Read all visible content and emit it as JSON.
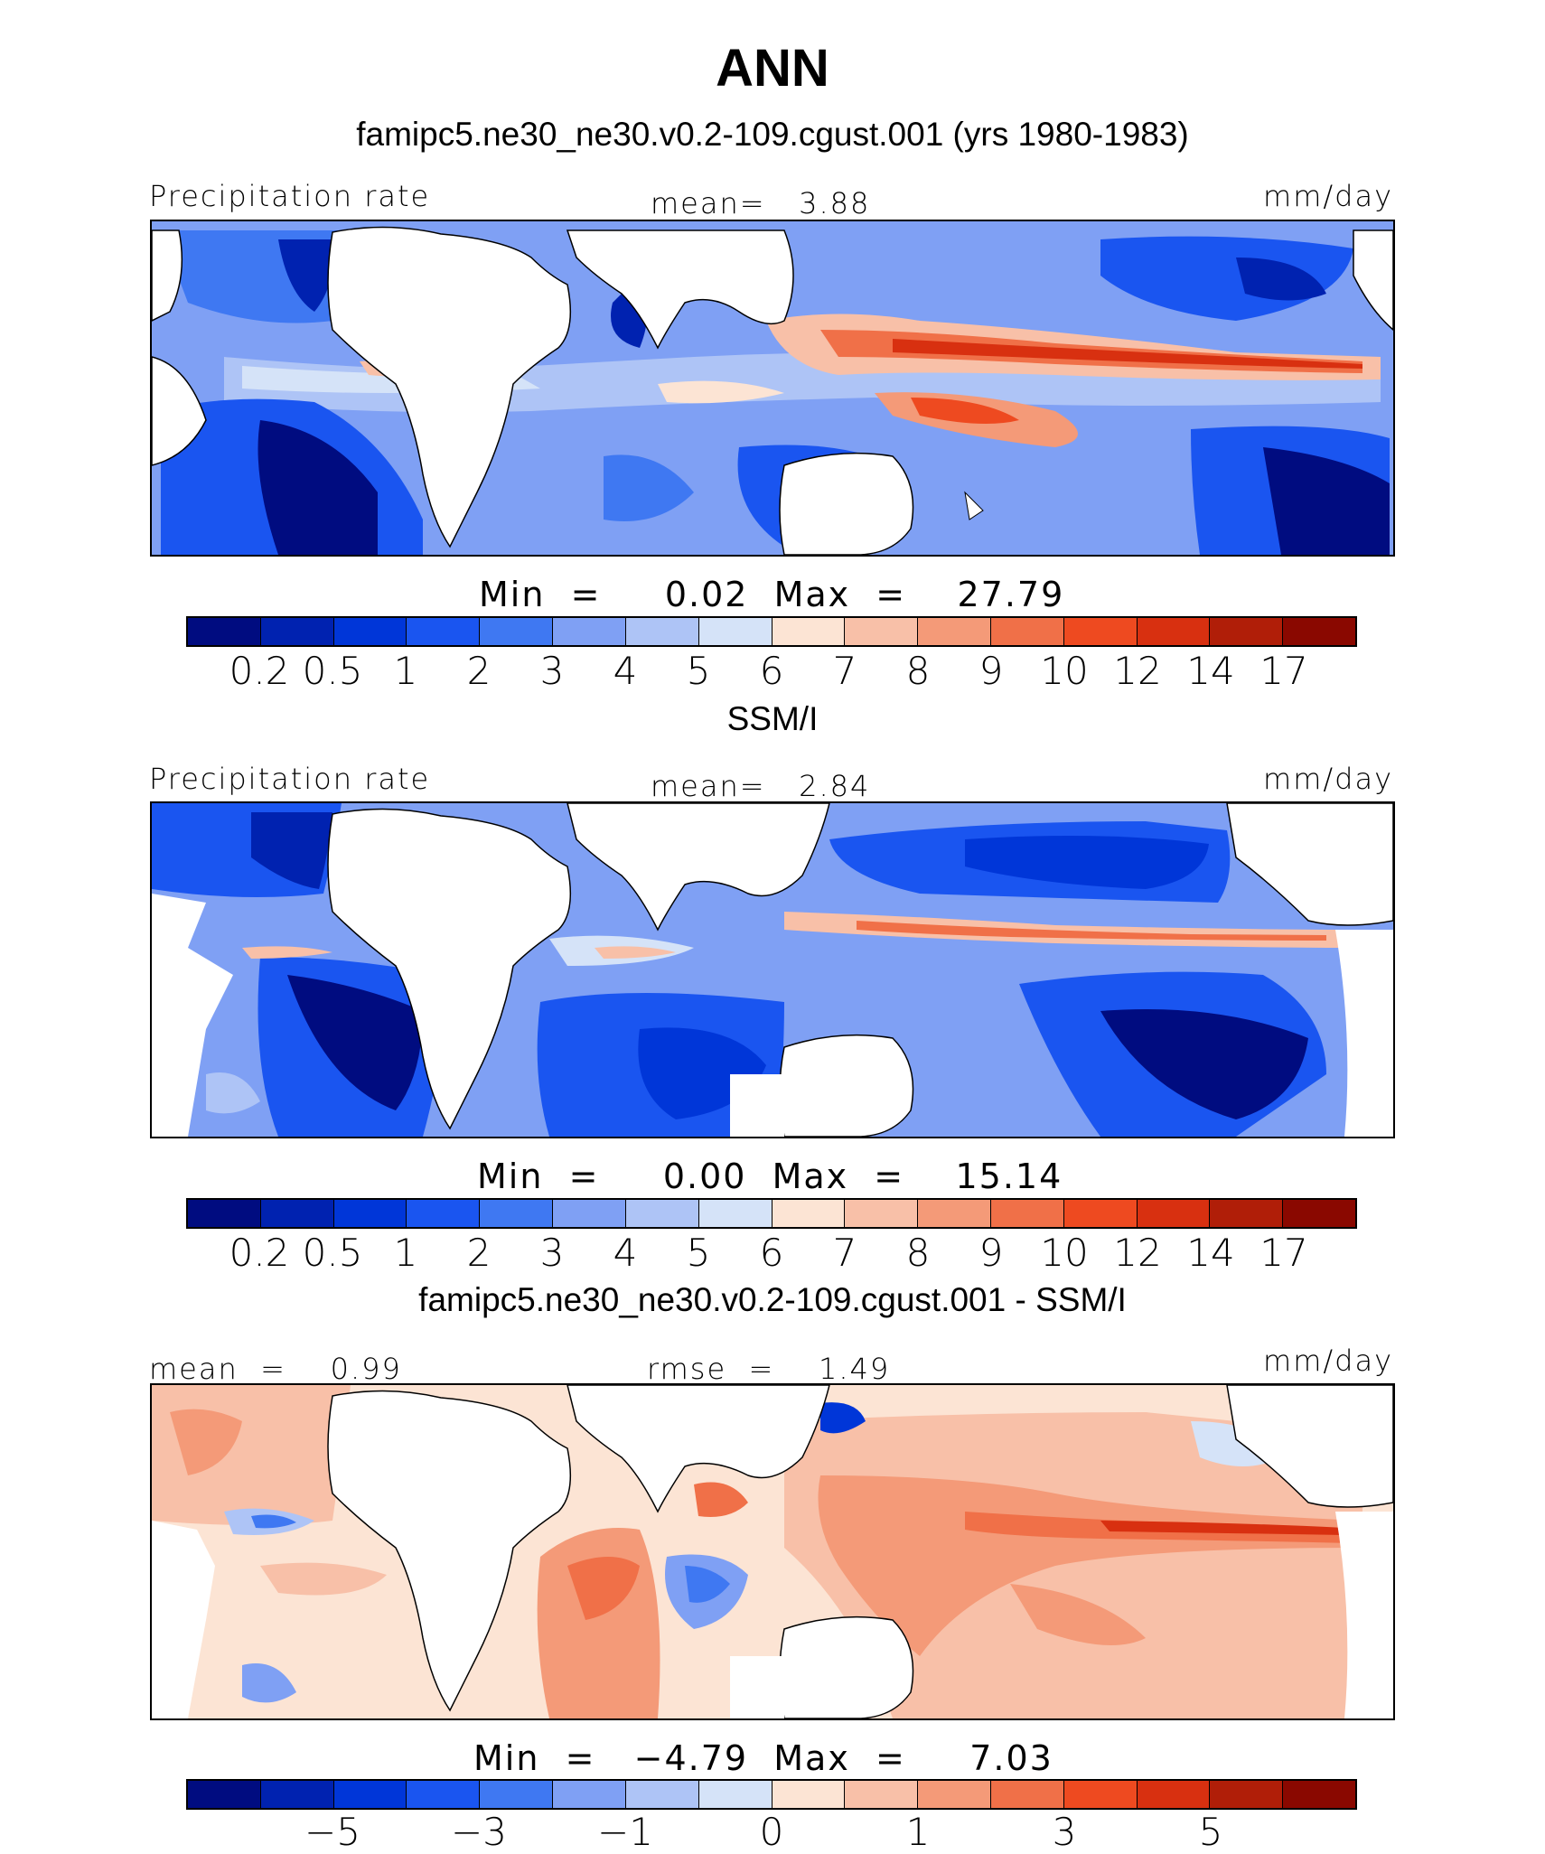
{
  "figure": {
    "title": "ANN",
    "season": "ANN"
  },
  "colors": {
    "precip_scale": [
      "#000c80",
      "#0022b0",
      "#0036d8",
      "#1a55f0",
      "#3f78f2",
      "#7fa0f4",
      "#aec4f6",
      "#d5e3f8",
      "#fce4d4",
      "#f8c0a8",
      "#f49a78",
      "#f07048",
      "#ee4a20",
      "#d83010",
      "#b01e08",
      "#8a0800"
    ],
    "diff_scale": [
      "#000c80",
      "#0022b0",
      "#0036d8",
      "#1a55f0",
      "#3f78f2",
      "#7fa0f4",
      "#aec4f6",
      "#d5e3f8",
      "#fce4d4",
      "#f8c0a8",
      "#f49a78",
      "#f07048",
      "#ee4a20",
      "#d83010",
      "#b01e08",
      "#8a0800"
    ],
    "land": "#ffffff",
    "coast": "#000000"
  },
  "chart_data": [
    {
      "type": "heatmap",
      "panel": "model",
      "title": "famipc5.ne30_ne30.v0.2-109.cgust.001 (yrs 1980-1983)",
      "left_label": "Precipitation rate",
      "center_label": "mean=   3.88",
      "mean": 3.88,
      "units": "mm/day",
      "min": 0.02,
      "max": 27.79,
      "min_max_text": "Min  =     0.02  Max  =    27.79",
      "levels": [
        "0.2",
        "0.5",
        "1",
        "2",
        "3",
        "4",
        "5",
        "6",
        "7",
        "8",
        "9",
        "10",
        "12",
        "14",
        "17"
      ]
    },
    {
      "type": "heatmap",
      "panel": "obs",
      "title": "SSM/I",
      "left_label": "Precipitation rate",
      "center_label": "mean=   2.84",
      "mean": 2.84,
      "units": "mm/day",
      "min": 0.0,
      "max": 15.14,
      "min_max_text": "Min  =     0.00  Max  =    15.14",
      "levels": [
        "0.2",
        "0.5",
        "1",
        "2",
        "3",
        "4",
        "5",
        "6",
        "7",
        "8",
        "9",
        "10",
        "12",
        "14",
        "17"
      ]
    },
    {
      "type": "heatmap",
      "panel": "difference",
      "title": "famipc5.ne30_ne30.v0.2-109.cgust.001 - SSM/I",
      "left_label": "mean  =    0.99",
      "center_label": "rmse  =    1.49",
      "mean": 0.99,
      "rmse": 1.49,
      "units": "mm/day",
      "min": -4.79,
      "max": 7.03,
      "min_max_text": "Min  =   −4.79  Max  =     7.03",
      "levels": [
        "−5",
        "−3",
        "−1",
        "0",
        "1",
        "3",
        "5"
      ]
    }
  ]
}
